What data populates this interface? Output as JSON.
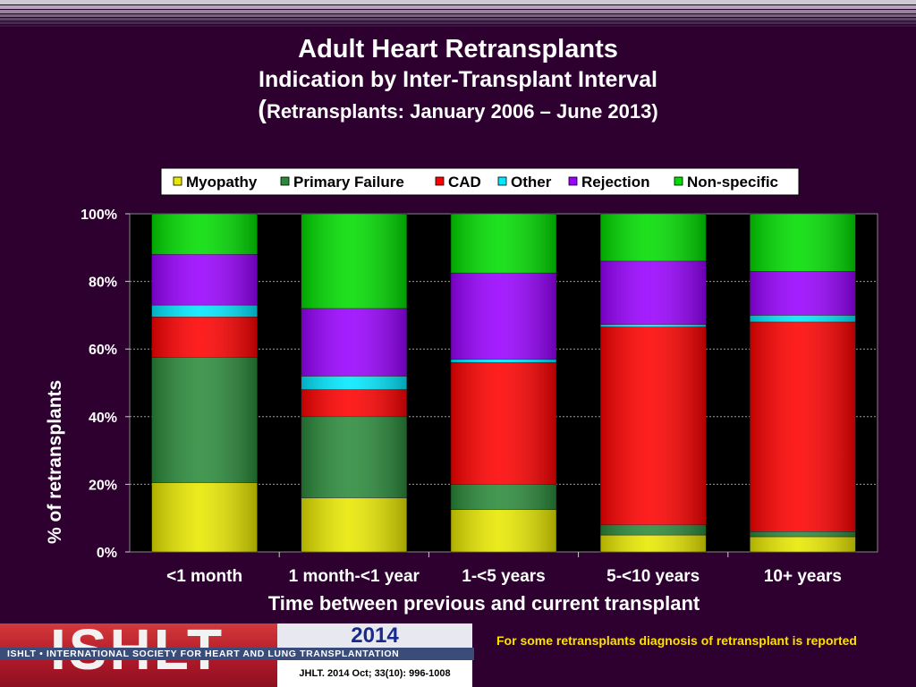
{
  "title": {
    "line1": "Adult Heart Retransplants",
    "line2": "Indication by Inter-Transplant Interval",
    "line3_paren_open": "(",
    "line3_text": "Retransplants: January 2006 – June 2013",
    "line3_paren_close": ")"
  },
  "chart_data": {
    "type": "bar",
    "stacked": true,
    "categories": [
      "<1 month",
      "1 month-<1 year",
      "1-<5 years",
      "5-<10 years",
      "10+ years"
    ],
    "series": [
      {
        "name": "Myopathy",
        "color": "#e8e800",
        "values": [
          20.5,
          16,
          12.5,
          5,
          4.5
        ]
      },
      {
        "name": "Primary Failure",
        "color": "#2a8a3a",
        "values": [
          37,
          24,
          7.5,
          3,
          1.5
        ]
      },
      {
        "name": "CAD",
        "color": "#ff0000",
        "values": [
          12,
          8,
          36,
          58.5,
          62
        ]
      },
      {
        "name": "Other",
        "color": "#00e8ff",
        "values": [
          3.5,
          4,
          1,
          0.8,
          2
        ]
      },
      {
        "name": "Rejection",
        "color": "#9900ff",
        "values": [
          15,
          20,
          25.5,
          18.7,
          13
        ]
      },
      {
        "name": "Non-specific",
        "color": "#00dd00",
        "values": [
          12,
          28,
          17.5,
          14,
          17
        ]
      }
    ],
    "y_ticks": [
      "0%",
      "20%",
      "40%",
      "60%",
      "80%",
      "100%"
    ],
    "ylim": [
      0,
      100
    ],
    "ylabel": "% of retransplants",
    "xlabel": "Time between previous and current transplant",
    "grid": true,
    "legend_position": "top"
  },
  "footer": {
    "logo_text": "ISHLT",
    "logo_band": "ISHLT • INTERNATIONAL SOCIETY FOR HEART AND LUNG TRANSPLANTATION",
    "year": "2014",
    "citation": "JHLT. 2014 Oct; 33(10): 996-1008",
    "note": "For some retransplants diagnosis of retransplant is reported"
  }
}
